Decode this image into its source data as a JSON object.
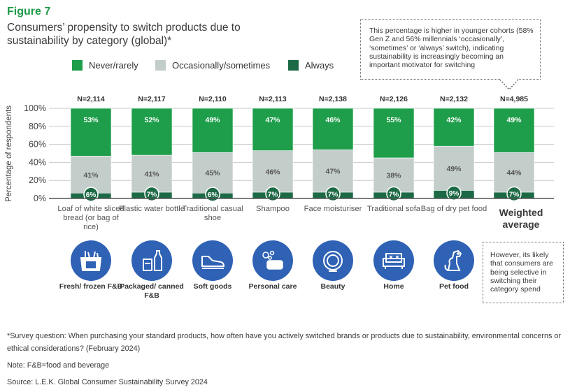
{
  "figure_label": "Figure 7",
  "title": "Consumers’ propensity to switch products due to sustainability by category (global)*",
  "legend": [
    {
      "label": "Never/rarely",
      "color": "#1e9e4a"
    },
    {
      "label": "Occasionally/sometimes",
      "color": "#c3cdc9"
    },
    {
      "label": "Always",
      "color": "#1c6a45"
    }
  ],
  "callout_top": "This percentage is higher in younger cohorts (58% Gen Z and 56% millennials ‘occasionally’, ‘sometimes’ or ‘always’ switch), indicating sustainability is increasingly becoming an important motivator for switching",
  "callout_bottom": "However, its likely that consumers are being selective in switching their category spend",
  "chart_data": {
    "type": "bar",
    "stacked": true,
    "ylabel": "Percentage of respondents",
    "ylim": [
      0,
      100
    ],
    "yticks": [
      "0%",
      "20%",
      "40%",
      "60%",
      "80%",
      "100%"
    ],
    "categories": [
      "Loaf of white sliced bread (or bag of rice)",
      "Plastic water bottle",
      "Traditional casual shoe",
      "Shampoo",
      "Face moisturiser",
      "Traditional sofa",
      "Bag of dry pet food",
      "Weighted average"
    ],
    "sample_sizes": [
      "N=2,114",
      "N=2,117",
      "N=2,110",
      "N=2,113",
      "N=2,138",
      "N=2,126",
      "N=2,132",
      "N=4,985"
    ],
    "series": [
      {
        "name": "Always",
        "color": "#1c6a45",
        "values": [
          6,
          7,
          6,
          7,
          7,
          7,
          9,
          7
        ],
        "labels": [
          "6%",
          "7%",
          "6%",
          "7%",
          "7%",
          "7%",
          "9%",
          "7%"
        ]
      },
      {
        "name": "Occasionally/sometimes",
        "color": "#c3cdc9",
        "values": [
          41,
          41,
          45,
          46,
          47,
          38,
          49,
          44
        ],
        "labels": [
          "41%",
          "41%",
          "45%",
          "46%",
          "47%",
          "38%",
          "49%",
          "44%"
        ]
      },
      {
        "name": "Never/rarely",
        "color": "#1e9e4a",
        "values": [
          53,
          52,
          49,
          47,
          46,
          55,
          42,
          49
        ],
        "labels": [
          "53%",
          "52%",
          "49%",
          "47%",
          "46%",
          "55%",
          "42%",
          "49%"
        ]
      }
    ]
  },
  "category_groups": [
    {
      "label": "Fresh/ frozen F&B",
      "icon": "fresh-frozen-food-icon"
    },
    {
      "label": "Packaged/ canned F&B",
      "icon": "packaged-food-icon"
    },
    {
      "label": "Soft goods",
      "icon": "shoe-icon"
    },
    {
      "label": "Personal care",
      "icon": "soap-icon"
    },
    {
      "label": "Beauty",
      "icon": "compact-mirror-icon"
    },
    {
      "label": "Home",
      "icon": "sofa-icon"
    },
    {
      "label": "Pet food",
      "icon": "dog-icon"
    }
  ],
  "footnotes": {
    "survey": "*Survey question: When purchasing your standard products, how often have you actively switched brands or products due to sustainability, environmental concerns or ethical considerations? (February 2024)",
    "note": "Note: F&B=food and beverage",
    "source": "Source: L.E.K. Global Consumer Sustainability Survey 2024"
  }
}
